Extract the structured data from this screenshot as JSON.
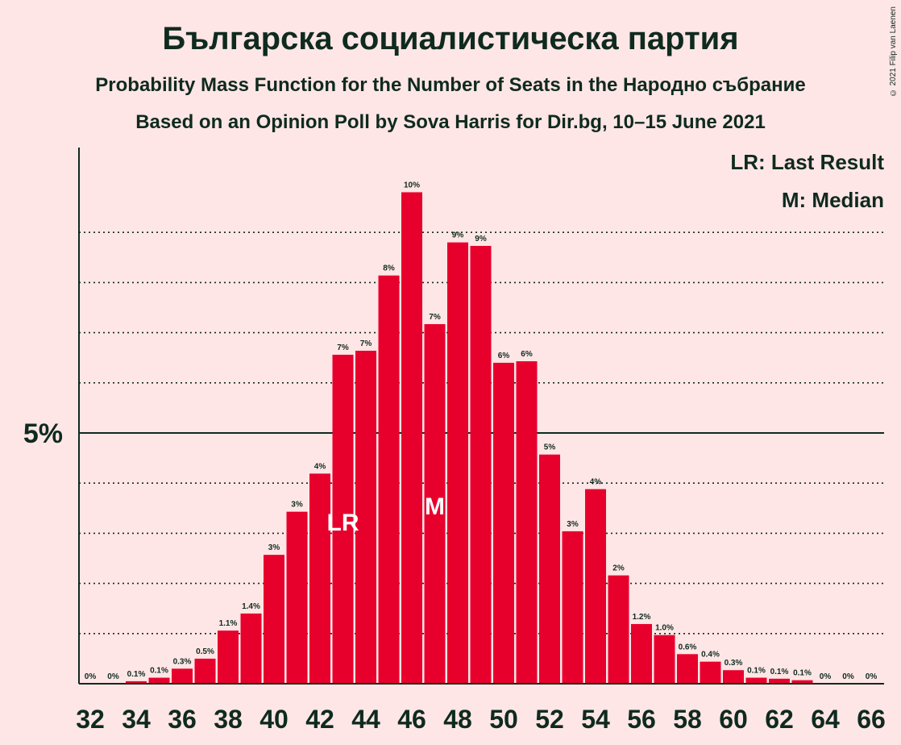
{
  "chart_data": {
    "type": "bar",
    "title": "Българска социалистическа партия",
    "subtitle": "Probability Mass Function for the Number of Seats in the Народно събрание",
    "subtitle2": "Based on an Opinion Poll by Sova Harris for Dir.bg, 10–15 June 2021",
    "copyright": "© 2021 Filip van Laenen",
    "ytick_label": "5%",
    "ylim": [
      0,
      10.7
    ],
    "x_tick_labels": [
      "32",
      "34",
      "36",
      "38",
      "40",
      "42",
      "44",
      "46",
      "48",
      "50",
      "52",
      "54",
      "56",
      "58",
      "60",
      "62",
      "64",
      "66"
    ],
    "categories": [
      32,
      33,
      34,
      35,
      36,
      37,
      38,
      39,
      40,
      41,
      42,
      43,
      44,
      45,
      46,
      47,
      48,
      49,
      50,
      51,
      52,
      53,
      54,
      55,
      56,
      57,
      58,
      59,
      60,
      61,
      62,
      63,
      64,
      65,
      66
    ],
    "values": [
      0,
      0,
      0.05,
      0.12,
      0.3,
      0.5,
      1.06,
      1.4,
      2.57,
      3.43,
      4.19,
      6.56,
      6.64,
      8.14,
      9.8,
      7.17,
      8.8,
      8.73,
      6.4,
      6.43,
      4.57,
      3.04,
      3.88,
      2.16,
      1.19,
      0.97,
      0.59,
      0.44,
      0.27,
      0.12,
      0.1,
      0.07,
      0,
      0,
      0
    ],
    "data_labels": [
      "0%",
      "0%",
      "0.1%",
      "0.1%",
      "0.3%",
      "0.5%",
      "1.1%",
      "1.4%",
      "3%",
      "3%",
      "4%",
      "7%",
      "7%",
      "8%",
      "10%",
      "7%",
      "9%",
      "9%",
      "6%",
      "6%",
      "5%",
      "3%",
      "4%",
      "2%",
      "1.2%",
      "1.0%",
      "0.6%",
      "0.4%",
      "0.3%",
      "0.1%",
      "0.1%",
      "0.1%",
      "0%",
      "0%",
      "0%"
    ],
    "last_result_seat": 43,
    "median_seat": 47,
    "lr_marker": "LR",
    "median_marker": "M",
    "legend": {
      "last_result": "LR: Last Result",
      "median": "M: Median",
      "position": "top-right"
    },
    "grid": true,
    "colors": {
      "bar": "#E8002D",
      "background": "#FFE6E6",
      "text": "#0F2A1F"
    }
  }
}
